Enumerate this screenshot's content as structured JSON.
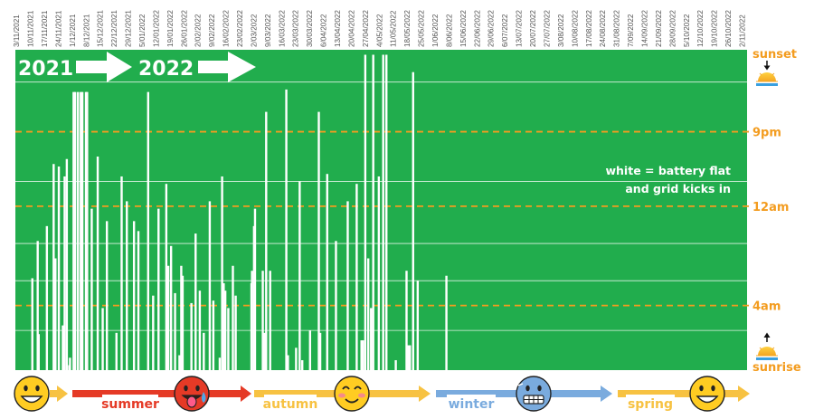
{
  "chart_data": {
    "type": "bar",
    "x_axis_dates": [
      "3/11/2021",
      "10/11/2021",
      "17/11/2021",
      "24/11/2021",
      "1/12/2021",
      "8/12/2021",
      "15/12/2021",
      "22/12/2021",
      "29/12/2021",
      "5/01/2022",
      "12/01/2022",
      "19/01/2022",
      "26/01/2022",
      "2/02/2022",
      "9/02/2022",
      "16/02/2022",
      "23/02/2022",
      "2/03/2022",
      "9/03/2022",
      "16/03/2022",
      "23/03/2022",
      "30/03/2022",
      "6/04/2022",
      "13/04/2022",
      "20/04/2022",
      "27/04/2022",
      "4/05/2022",
      "11/05/2022",
      "18/05/2022",
      "25/05/2022",
      "1/06/2022",
      "8/06/2022",
      "15/06/2022",
      "22/06/2022",
      "29/06/2022",
      "6/07/2022",
      "13/07/2022",
      "20/07/2022",
      "27/07/2022",
      "3/08/2022",
      "10/08/2022",
      "17/08/2022",
      "24/08/2022",
      "31/08/2022",
      "7/09/2022",
      "14/09/2022",
      "21/09/2022",
      "28/09/2022",
      "5/10/2022",
      "12/10/2022",
      "19/10/2022",
      "26/10/2022",
      "2/11/2022"
    ],
    "y_axis_labels": [
      {
        "label": "sunset",
        "hour": -0.95
      },
      {
        "label": "9pm",
        "hour": 2
      },
      {
        "label": "12am",
        "hour": 5
      },
      {
        "label": "4am",
        "hour": 9
      },
      {
        "label": "sunrise",
        "hour": 11.1
      }
    ],
    "y_range_hours_after_6pm": [
      -1.3,
      11.6
    ],
    "battery_flat_bars": [
      {
        "x": 8.0,
        "hours": 3.7
      },
      {
        "x": 10.7,
        "hours": 5.2
      },
      {
        "x": 11.2,
        "hours": 1.45
      },
      {
        "x": 15.3,
        "hours": 5.8
      },
      {
        "x": 18.7,
        "hours": 8.3
      },
      {
        "x": 19.6,
        "hours": 4.5
      },
      {
        "x": 21.3,
        "hours": 8.2
      },
      {
        "x": 23.3,
        "hours": 1.8
      },
      {
        "x": 24.2,
        "hours": 7.8
      },
      {
        "x": 25.3,
        "hours": 8.5
      },
      {
        "x": 26.5,
        "hours": 0.2
      },
      {
        "x": 26.9,
        "hours": 0.5
      },
      {
        "x": 28.7,
        "hours": 11.2
      },
      {
        "x": 29.5,
        "hours": 11.2
      },
      {
        "x": 30.9,
        "hours": 11.2
      },
      {
        "x": 32.3,
        "hours": 11.2
      },
      {
        "x": 33.1,
        "hours": 11.2
      },
      {
        "x": 34.9,
        "hours": 11.2
      },
      {
        "x": 35.5,
        "hours": 11.2
      },
      {
        "x": 37.8,
        "hours": 6.5
      },
      {
        "x": 40.8,
        "hours": 8.6
      },
      {
        "x": 43.3,
        "hours": 2.5
      },
      {
        "x": 45.4,
        "hours": 6.0
      },
      {
        "x": 50.2,
        "hours": 1.5
      },
      {
        "x": 52.8,
        "hours": 7.8
      },
      {
        "x": 55.4,
        "hours": 6.8
      },
      {
        "x": 59.0,
        "hours": 6.0
      },
      {
        "x": 61.2,
        "hours": 5.6
      },
      {
        "x": 66.1,
        "hours": 11.2
      },
      {
        "x": 68.6,
        "hours": 3.0
      },
      {
        "x": 71.3,
        "hours": 6.5
      },
      {
        "x": 75.2,
        "hours": 7.5
      },
      {
        "x": 76.2,
        "hours": 4.2
      },
      {
        "x": 77.6,
        "hours": 5.0
      },
      {
        "x": 79.6,
        "hours": 3.1
      },
      {
        "x": 81.8,
        "hours": 0.6
      },
      {
        "x": 82.7,
        "hours": 4.2
      },
      {
        "x": 83.4,
        "hours": 3.8
      },
      {
        "x": 87.8,
        "hours": 2.7
      },
      {
        "x": 89.9,
        "hours": 5.5
      },
      {
        "x": 92.0,
        "hours": 3.2
      },
      {
        "x": 94.0,
        "hours": 1.5
      },
      {
        "x": 97.0,
        "hours": 6.8
      },
      {
        "x": 98.8,
        "hours": 2.8
      },
      {
        "x": 102.0,
        "hours": 0.5
      },
      {
        "x": 103.2,
        "hours": 7.8
      },
      {
        "x": 104.0,
        "hours": 3.5
      },
      {
        "x": 104.8,
        "hours": 3.2
      },
      {
        "x": 106.3,
        "hours": 2.5
      },
      {
        "x": 108.6,
        "hours": 4.2
      },
      {
        "x": 110.0,
        "hours": 3.0
      },
      {
        "x": 117.9,
        "hours": 3.5
      },
      {
        "x": 118.2,
        "hours": 4.0
      },
      {
        "x": 119.2,
        "hours": 5.8
      },
      {
        "x": 119.7,
        "hours": 6.5
      },
      {
        "x": 123.6,
        "hours": 4.0
      },
      {
        "x": 124.4,
        "hours": 1.5
      },
      {
        "x": 125.3,
        "hours": 10.4
      },
      {
        "x": 127.3,
        "hours": 4.0
      },
      {
        "x": 135.4,
        "hours": 11.3
      },
      {
        "x": 136.2,
        "hours": 0.6
      },
      {
        "x": 140.3,
        "hours": 0.9
      },
      {
        "x": 142.1,
        "hours": 7.6
      },
      {
        "x": 143.4,
        "hours": 0.4
      },
      {
        "x": 147.3,
        "hours": 1.6
      },
      {
        "x": 151.7,
        "hours": 10.4
      },
      {
        "x": 152.4,
        "hours": 1.5
      },
      {
        "x": 155.9,
        "hours": 7.9
      },
      {
        "x": 160.3,
        "hours": 5.2
      },
      {
        "x": 166.2,
        "hours": 6.8
      },
      {
        "x": 170.7,
        "hours": 7.5
      },
      {
        "x": 173.1,
        "hours": 1.2
      },
      {
        "x": 173.9,
        "hours": 1.2
      },
      {
        "x": 175.0,
        "hours": 12.7
      },
      {
        "x": 176.5,
        "hours": 4.5
      },
      {
        "x": 177.9,
        "hours": 2.5
      },
      {
        "x": 179.0,
        "hours": 12.7
      },
      {
        "x": 181.8,
        "hours": 7.8
      },
      {
        "x": 184.0,
        "hours": 12.7
      },
      {
        "x": 185.6,
        "hours": 12.7
      },
      {
        "x": 190.3,
        "hours": 0.4
      },
      {
        "x": 195.7,
        "hours": 4.0
      },
      {
        "x": 196.5,
        "hours": 1.0
      },
      {
        "x": 197.4,
        "hours": 1.0
      },
      {
        "x": 199.0,
        "hours": 12.0
      },
      {
        "x": 201.3,
        "hours": 3.6
      },
      {
        "x": 215.7,
        "hours": 3.8
      }
    ],
    "colors": {
      "background": "#21ad4d",
      "bar": "#ffffff",
      "gridline": "#ffffff",
      "dashed_line": "#f39c1f",
      "orange_label": "#f39c1f",
      "summer": "#e53a26",
      "autumn": "#f7c242",
      "winter": "#7aabde",
      "spring": "#f7c242"
    },
    "annotations": {
      "year_2021": "2021",
      "year_2022": "2022",
      "legend_note_line1": "white = battery flat",
      "legend_note_line2": "and grid kicks in"
    },
    "seasons": [
      {
        "label": "summer",
        "emoji_icon": "hot-face-emoji"
      },
      {
        "label": "autumn",
        "emoji_icon": "smiling-blush-emoji"
      },
      {
        "label": "winter",
        "emoji_icon": "cold-face-emoji"
      },
      {
        "label": "spring",
        "emoji_icon": "grin-emoji"
      }
    ],
    "first_emoji_icon": "grin-emoji"
  }
}
